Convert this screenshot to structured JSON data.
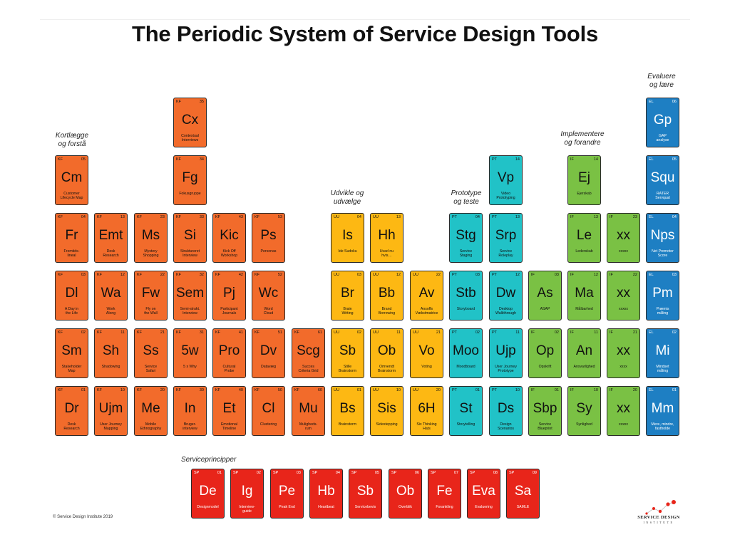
{
  "title": "The Periodic System of Service Design Tools",
  "colors": {
    "KF": "#f26b2b",
    "UU": "#fdb813",
    "PT": "#21c2c7",
    "IF": "#7ac144",
    "EL": "#1e7fc3",
    "SP": "#e8251a"
  },
  "categories": [
    {
      "id": "kf",
      "text": "Kortlægge og forstå",
      "lines": [
        "Kortlægge",
        "og forstå"
      ]
    },
    {
      "id": "uu",
      "text": "Udvikle og udvælge",
      "lines": [
        "Udvikle og",
        "udvælge"
      ]
    },
    {
      "id": "pt",
      "text": "Prototype og teste",
      "lines": [
        "Prototype",
        "og teste"
      ]
    },
    {
      "id": "if",
      "text": "Implementere og forandre",
      "lines": [
        "Implementere",
        "og forandre"
      ]
    },
    {
      "id": "el",
      "text": "Evaluere og lære",
      "lines": [
        "Evaluere",
        "og lære"
      ]
    },
    {
      "id": "sp",
      "text": "Serviceprincipper",
      "lines": [
        "Serviceprincipper"
      ]
    }
  ],
  "tiles": [
    {
      "col": 0,
      "row": 2,
      "cat": "KF",
      "num": "05",
      "sym": "Cm",
      "desc": [
        "Customer",
        "Lifecycle Map"
      ]
    },
    {
      "col": 0,
      "row": 3,
      "cat": "KF",
      "num": "04",
      "sym": "Fr",
      "desc": [
        "Fremtids-",
        "lineal"
      ]
    },
    {
      "col": 0,
      "row": 4,
      "cat": "KF",
      "num": "03",
      "sym": "Dl",
      "desc": [
        "A Day in",
        "the Life"
      ]
    },
    {
      "col": 0,
      "row": 5,
      "cat": "KF",
      "num": "02",
      "sym": "Sm",
      "desc": [
        "Stakeholder",
        "Map"
      ]
    },
    {
      "col": 0,
      "row": 6,
      "cat": "KF",
      "num": "01",
      "sym": "Dr",
      "desc": [
        "Desk",
        "Research"
      ]
    },
    {
      "col": 1,
      "row": 3,
      "cat": "KF",
      "num": "13",
      "sym": "Emt",
      "desc": [
        "Desk",
        "Research"
      ]
    },
    {
      "col": 1,
      "row": 4,
      "cat": "KF",
      "num": "12",
      "sym": "Wa",
      "desc": [
        "Work",
        "Along"
      ]
    },
    {
      "col": 1,
      "row": 5,
      "cat": "KF",
      "num": "11",
      "sym": "Sh",
      "desc": [
        "Shadowing"
      ]
    },
    {
      "col": 1,
      "row": 6,
      "cat": "KF",
      "num": "10",
      "sym": "Ujm",
      "desc": [
        "User Journey",
        "Mapping"
      ]
    },
    {
      "col": 2,
      "row": 3,
      "cat": "KF",
      "num": "23",
      "sym": "Ms",
      "desc": [
        "Mystery",
        "Shopping"
      ]
    },
    {
      "col": 2,
      "row": 4,
      "cat": "KF",
      "num": "22",
      "sym": "Fw",
      "desc": [
        "Fly on",
        "the Wall"
      ]
    },
    {
      "col": 2,
      "row": 5,
      "cat": "KF",
      "num": "21",
      "sym": "Ss",
      "desc": [
        "Service",
        "Safari"
      ]
    },
    {
      "col": 2,
      "row": 6,
      "cat": "KF",
      "num": "20",
      "sym": "Me",
      "desc": [
        "Mobile",
        "Ethnography"
      ]
    },
    {
      "col": 3,
      "row": 1,
      "cat": "KF",
      "num": "35",
      "sym": "Cx",
      "desc": [
        "Contextual",
        "Interviews"
      ]
    },
    {
      "col": 3,
      "row": 2,
      "cat": "KF",
      "num": "34",
      "sym": "Fg",
      "desc": [
        "Fokusgruppe"
      ]
    },
    {
      "col": 3,
      "row": 3,
      "cat": "KF",
      "num": "33",
      "sym": "Si",
      "desc": [
        "Struktureret",
        "Interview"
      ]
    },
    {
      "col": 3,
      "row": 4,
      "cat": "KF",
      "num": "32",
      "sym": "Sem",
      "desc": [
        "Semi-strukt.",
        "Interview"
      ]
    },
    {
      "col": 3,
      "row": 5,
      "cat": "KF",
      "num": "31",
      "sym": "5w",
      "desc": [
        "5 x Why"
      ]
    },
    {
      "col": 3,
      "row": 6,
      "cat": "KF",
      "num": "30",
      "sym": "In",
      "desc": [
        "Bruger-",
        "interview"
      ]
    },
    {
      "col": 4,
      "row": 3,
      "cat": "KF",
      "num": "43",
      "sym": "Kic",
      "desc": [
        "Kick Off",
        "Workshop"
      ]
    },
    {
      "col": 4,
      "row": 4,
      "cat": "KF",
      "num": "42",
      "sym": "Pj",
      "desc": [
        "Participant",
        "Journals"
      ]
    },
    {
      "col": 4,
      "row": 5,
      "cat": "KF",
      "num": "41",
      "sym": "Pro",
      "desc": [
        "Cultural",
        "Probe"
      ]
    },
    {
      "col": 4,
      "row": 6,
      "cat": "KF",
      "num": "40",
      "sym": "Et",
      "desc": [
        "Emotional",
        "Timeline"
      ]
    },
    {
      "col": 5,
      "row": 3,
      "cat": "KF",
      "num": "53",
      "sym": "Ps",
      "desc": [
        "Personas"
      ]
    },
    {
      "col": 5,
      "row": 4,
      "cat": "KF",
      "num": "52",
      "sym": "Wc",
      "desc": [
        "Word",
        "Cloud"
      ]
    },
    {
      "col": 5,
      "row": 5,
      "cat": "KF",
      "num": "51",
      "sym": "Dv",
      "desc": [
        "Datavæg"
      ]
    },
    {
      "col": 5,
      "row": 6,
      "cat": "KF",
      "num": "50",
      "sym": "Cl",
      "desc": [
        "Clustering"
      ]
    },
    {
      "col": 6,
      "row": 5,
      "cat": "KF",
      "num": "61",
      "sym": "Scg",
      "desc": [
        "Succes",
        "Criteria Grid"
      ]
    },
    {
      "col": 6,
      "row": 6,
      "cat": "KF",
      "num": "60",
      "sym": "Mu",
      "desc": [
        "Muligheds-",
        "rum"
      ]
    },
    {
      "col": 7,
      "row": 3,
      "cat": "UU",
      "num": "04",
      "sym": "Is",
      "desc": [
        "Ide Sudoku"
      ]
    },
    {
      "col": 7,
      "row": 4,
      "cat": "UU",
      "num": "03",
      "sym": "Br",
      "desc": [
        "Brain",
        "Writing"
      ]
    },
    {
      "col": 7,
      "row": 5,
      "cat": "UU",
      "num": "02",
      "sym": "Sb",
      "desc": [
        "Stille",
        "Brainstorm"
      ]
    },
    {
      "col": 7,
      "row": 6,
      "cat": "UU",
      "num": "01",
      "sym": "Bs",
      "desc": [
        "Brainstorm"
      ]
    },
    {
      "col": 8,
      "row": 3,
      "cat": "UU",
      "num": "13",
      "sym": "Hh",
      "desc": [
        "Hvad nu",
        "hvis…"
      ]
    },
    {
      "col": 8,
      "row": 4,
      "cat": "UU",
      "num": "12",
      "sym": "Bb",
      "desc": [
        "Brand",
        "Borrowing"
      ]
    },
    {
      "col": 8,
      "row": 5,
      "cat": "UU",
      "num": "11",
      "sym": "Ob",
      "desc": [
        "Omvendt",
        "Brainstorm"
      ]
    },
    {
      "col": 8,
      "row": 6,
      "cat": "UU",
      "num": "10",
      "sym": "Sis",
      "desc": [
        "Sidestepping"
      ]
    },
    {
      "col": 9,
      "row": 4,
      "cat": "UU",
      "num": "22",
      "sym": "Av",
      "desc": [
        "Ansoffs",
        "Vækstmatrice"
      ]
    },
    {
      "col": 9,
      "row": 5,
      "cat": "UU",
      "num": "21",
      "sym": "Vo",
      "desc": [
        "Voting"
      ]
    },
    {
      "col": 9,
      "row": 6,
      "cat": "UU",
      "num": "20",
      "sym": "6H",
      "desc": [
        "Six Thinking",
        "Hats"
      ]
    },
    {
      "col": 10,
      "row": 3,
      "cat": "PT",
      "num": "04",
      "sym": "Stg",
      "desc": [
        "Service",
        "Staging"
      ]
    },
    {
      "col": 10,
      "row": 4,
      "cat": "PT",
      "num": "03",
      "sym": "Stb",
      "desc": [
        "Storyboard"
      ]
    },
    {
      "col": 10,
      "row": 5,
      "cat": "PT",
      "num": "02",
      "sym": "Moo",
      "desc": [
        "Moodboard"
      ]
    },
    {
      "col": 10,
      "row": 6,
      "cat": "PT",
      "num": "01",
      "sym": "St",
      "desc": [
        "Storytelling"
      ]
    },
    {
      "col": 11,
      "row": 2,
      "cat": "PT",
      "num": "14",
      "sym": "Vp",
      "desc": [
        "Video",
        "Prototyping"
      ]
    },
    {
      "col": 11,
      "row": 3,
      "cat": "PT",
      "num": "13",
      "sym": "Srp",
      "desc": [
        "Service",
        "Roleplay"
      ]
    },
    {
      "col": 11,
      "row": 4,
      "cat": "PT",
      "num": "12",
      "sym": "Dw",
      "desc": [
        "Desktop",
        "Walkthrough"
      ]
    },
    {
      "col": 11,
      "row": 5,
      "cat": "PT",
      "num": "11",
      "sym": "Ujp",
      "desc": [
        "User Journey",
        "Prototype"
      ]
    },
    {
      "col": 11,
      "row": 6,
      "cat": "PT",
      "num": "10",
      "sym": "Ds",
      "desc": [
        "Design",
        "Scenarios"
      ]
    },
    {
      "col": 12,
      "row": 4,
      "cat": "IF",
      "num": "03",
      "sym": "As",
      "desc": [
        "ASAP"
      ]
    },
    {
      "col": 12,
      "row": 5,
      "cat": "IF",
      "num": "02",
      "sym": "Op",
      "desc": [
        "Opskrift"
      ]
    },
    {
      "col": 12,
      "row": 6,
      "cat": "IF",
      "num": "01",
      "sym": "Sbp",
      "desc": [
        "Service",
        "Blueprint"
      ]
    },
    {
      "col": 13,
      "row": 2,
      "cat": "IF",
      "num": "14",
      "sym": "Ej",
      "desc": [
        "Ejerskab"
      ]
    },
    {
      "col": 13,
      "row": 3,
      "cat": "IF",
      "num": "13",
      "sym": "Le",
      "desc": [
        "Lederskab"
      ]
    },
    {
      "col": 13,
      "row": 4,
      "cat": "IF",
      "num": "12",
      "sym": "Ma",
      "desc": [
        "Målbarhed"
      ]
    },
    {
      "col": 13,
      "row": 5,
      "cat": "IF",
      "num": "11",
      "sym": "An",
      "desc": [
        "Ansvarlighed"
      ]
    },
    {
      "col": 13,
      "row": 6,
      "cat": "IF",
      "num": "10",
      "sym": "Sy",
      "desc": [
        "Synlighed"
      ]
    },
    {
      "col": 14,
      "row": 3,
      "cat": "IF",
      "num": "23",
      "sym": "xx",
      "desc": [
        "xxxxx"
      ]
    },
    {
      "col": 14,
      "row": 4,
      "cat": "IF",
      "num": "22",
      "sym": "xx",
      "desc": [
        "xxxxx"
      ]
    },
    {
      "col": 14,
      "row": 5,
      "cat": "IF",
      "num": "21",
      "sym": "xx",
      "desc": [
        "xxxx"
      ]
    },
    {
      "col": 14,
      "row": 6,
      "cat": "IF",
      "num": "20",
      "sym": "xx",
      "desc": [
        "xxxxx"
      ]
    },
    {
      "col": 15,
      "row": 1,
      "cat": "EL",
      "num": "06",
      "sym": "Gp",
      "desc": [
        "GAP",
        "analyse"
      ]
    },
    {
      "col": 15,
      "row": 2,
      "cat": "EL",
      "num": "05",
      "sym": "Squ",
      "desc": [
        "RATER",
        "Servqual"
      ]
    },
    {
      "col": 15,
      "row": 3,
      "cat": "EL",
      "num": "04",
      "sym": "Nps",
      "desc": [
        "Net Promoter",
        "Score"
      ]
    },
    {
      "col": 15,
      "row": 4,
      "cat": "EL",
      "num": "03",
      "sym": "Pm",
      "desc": [
        "Præmis",
        "måling"
      ]
    },
    {
      "col": 15,
      "row": 5,
      "cat": "EL",
      "num": "02",
      "sym": "Mi",
      "desc": [
        "Mindset",
        "måling"
      ]
    },
    {
      "col": 15,
      "row": 6,
      "cat": "EL",
      "num": "01",
      "sym": "Mm",
      "desc": [
        "Mere, mindre,",
        "fastholde"
      ]
    }
  ],
  "principles": [
    {
      "cat": "SP",
      "num": "01",
      "sym": "De",
      "desc": [
        "Designmodel"
      ]
    },
    {
      "cat": "SP",
      "num": "02",
      "sym": "Ig",
      "desc": [
        "Interview-",
        "guide"
      ]
    },
    {
      "cat": "SP",
      "num": "03",
      "sym": "Pe",
      "desc": [
        "Peak End"
      ]
    },
    {
      "cat": "SP",
      "num": "04",
      "sym": "Hb",
      "desc": [
        "Heartbeat"
      ]
    },
    {
      "cat": "SP",
      "num": "05",
      "sym": "Sb",
      "desc": [
        "Servicebevis"
      ]
    },
    {
      "cat": "SP",
      "num": "06",
      "sym": "Ob",
      "desc": [
        "Overblik"
      ]
    },
    {
      "cat": "SP",
      "num": "07",
      "sym": "Fe",
      "desc": [
        "Forankling"
      ]
    },
    {
      "cat": "SP",
      "num": "08",
      "sym": "Eva",
      "desc": [
        "Evaluering"
      ]
    },
    {
      "cat": "SP",
      "num": "09",
      "sym": "Sa",
      "desc": [
        "SAMLE"
      ]
    }
  ],
  "footer": {
    "copyright": "© Service Design Institute 2019",
    "logo_text": "SERVICE DESIGN",
    "logo_sub": "INSTITUTE"
  }
}
